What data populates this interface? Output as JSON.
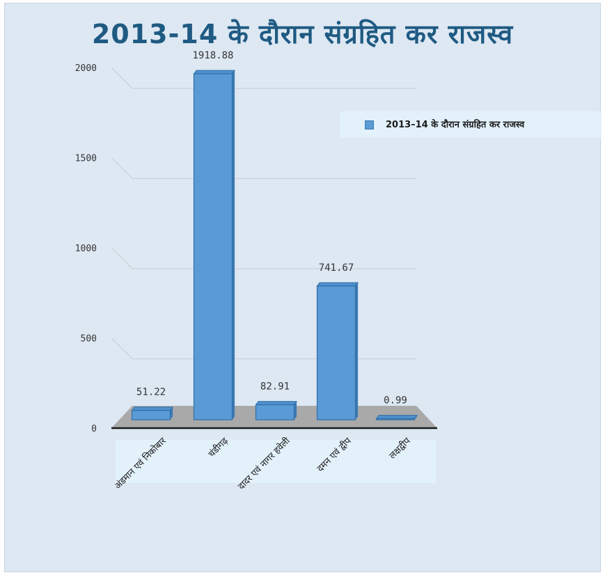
{
  "chart_data": {
    "type": "bar",
    "title": "2013-14 के दौरान संग्रहित कर राजस्व",
    "categories": [
      "अंडमान एवं निकोबार",
      "चंडीगढ़",
      "दादर एवं नागर हवेली",
      "दमन एवं द्वीप",
      "लक्षद्वीप"
    ],
    "series": [
      {
        "name": "2013–14 के दौरान संग्रहित कर राजस्व",
        "values": [
          51.22,
          1918.88,
          82.91,
          741.67,
          0.99
        ]
      }
    ],
    "data_labels": [
      "51.22",
      "1918.88",
      "82.91",
      "741.67",
      "0.99"
    ],
    "yticks": [
      "0",
      "500",
      "1000",
      "1500",
      "2000"
    ],
    "ylim": [
      0,
      2000
    ],
    "grid": true,
    "legend_position": "top-right",
    "xlabel": "",
    "ylabel": "",
    "bar_color": "#5b9bd5",
    "title_color": "#1f5a82"
  }
}
